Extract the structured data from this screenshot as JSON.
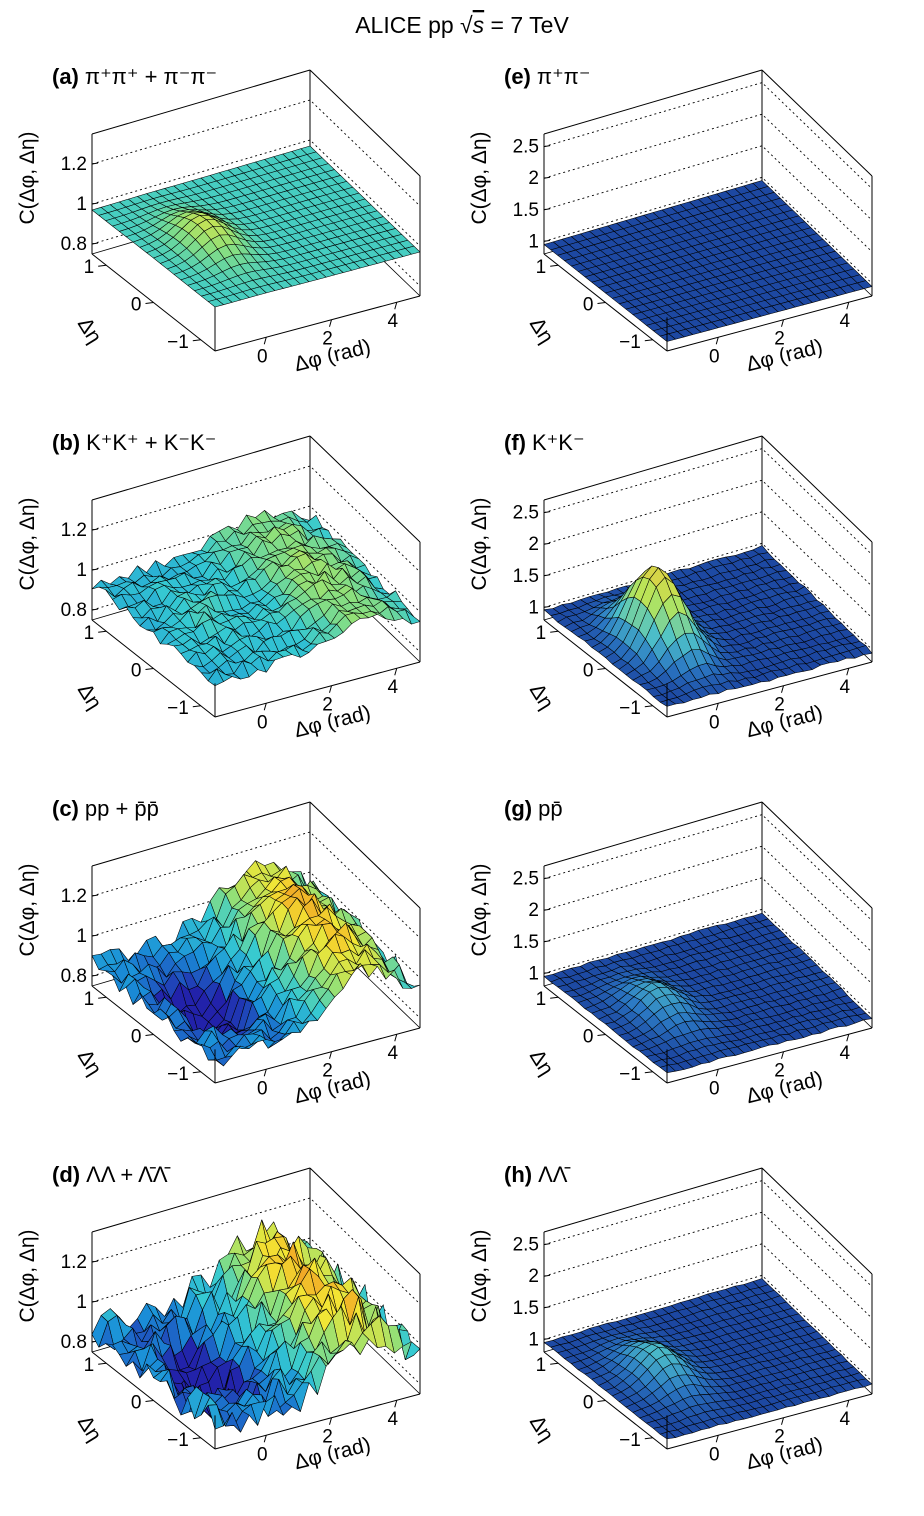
{
  "title": {
    "prefix": "ALICE pp ",
    "sqrt": "√",
    "s": "s",
    "suffix": " = 7 TeV"
  },
  "axes": {
    "z_label": "C(Δφ, Δη)",
    "y_label": "Δη",
    "x_label": "Δφ (rad)",
    "x_ticks": [
      "0",
      "2",
      "4"
    ],
    "y_ticks": [
      "−1",
      "0",
      "1"
    ],
    "z_ticks_like": [
      "0.8",
      "1",
      "1.2"
    ],
    "z_ticks_unlike": [
      "1",
      "1.5",
      "2",
      "2.5"
    ]
  },
  "colors": {
    "like_surface": [
      "#2222aa",
      "#1a8fd8",
      "#35c9d2",
      "#8fe07a",
      "#f3e634",
      "#f08a1e",
      "#c81e10"
    ],
    "unlike_surface": [
      "#151f7a",
      "#1a3f9c",
      "#2c7ac4",
      "#4fc3c9",
      "#b6e65a",
      "#f0c83a",
      "#d23a14"
    ],
    "mesh": "#000000"
  },
  "chart_data": [
    {
      "id": "a",
      "letter": "(a)",
      "label": "π⁺π⁺ + π⁻π⁻",
      "type": "surface",
      "zlim": [
        0.75,
        1.35
      ],
      "peak_height": 0.12,
      "ridge": 0.0,
      "away": 0.0,
      "noise": 0.0,
      "description_values": {
        "near_side_peak_max": 1.0,
        "baseline": 0.97
      }
    },
    {
      "id": "b",
      "letter": "(b)",
      "label": "K⁺K⁺ + K⁻K⁻",
      "type": "surface",
      "zlim": [
        0.75,
        1.35
      ],
      "peak_height": 0.05,
      "ridge": 0.0,
      "away": 0.12,
      "noise": 0.03,
      "description_values": {
        "near_side_peak_max": 0.97,
        "baseline": 0.97
      }
    },
    {
      "id": "c",
      "letter": "(c)",
      "label": "pp + p̄p̄",
      "type": "surface",
      "zlim": [
        0.75,
        1.35
      ],
      "peak_height": -0.2,
      "ridge": 0.0,
      "away": 0.3,
      "noise": 0.05,
      "description_values": {
        "near_side_dip_min": 0.75,
        "away_side_max": 1.25
      }
    },
    {
      "id": "d",
      "letter": "(d)",
      "label": "ΛΛ + Λ̄Λ̄",
      "type": "surface",
      "zlim": [
        0.75,
        1.35
      ],
      "peak_height": -0.2,
      "ridge": 0.0,
      "away": 0.3,
      "noise": 0.08,
      "description_values": {
        "near_side_dip_min": 0.75,
        "away_side_max": 1.3
      }
    },
    {
      "id": "e",
      "letter": "(e)",
      "label": "π⁺π⁻",
      "type": "surface",
      "zlim": [
        0.8,
        2.7
      ],
      "peak_height": 0.0,
      "ridge": 0.0,
      "away": 0.0,
      "noise": 0.0,
      "description_values": {
        "baseline": 0.95
      }
    },
    {
      "id": "f",
      "letter": "(f)",
      "label": "K⁺K⁻",
      "type": "surface",
      "zlim": [
        0.8,
        2.7
      ],
      "peak_height": 1.2,
      "ridge": 0.0,
      "away": 0.0,
      "noise": 0.02,
      "description_values": {
        "near_side_peak_max": 2.1,
        "baseline": 0.95
      }
    },
    {
      "id": "g",
      "letter": "(g)",
      "label": "pp̄",
      "type": "surface",
      "zlim": [
        0.8,
        2.7
      ],
      "peak_height": 0.35,
      "ridge": 0.0,
      "away": 0.0,
      "noise": 0.015,
      "description_values": {
        "near_side_peak_max": 1.3,
        "baseline": 0.95
      }
    },
    {
      "id": "h",
      "letter": "(h)",
      "label": "ΛΛ̄",
      "type": "surface",
      "zlim": [
        0.8,
        2.7
      ],
      "peak_height": 0.45,
      "ridge": 0.0,
      "away": 0.0,
      "noise": 0.01,
      "description_values": {
        "near_side_peak_max": 1.4,
        "baseline": 0.95
      }
    }
  ]
}
